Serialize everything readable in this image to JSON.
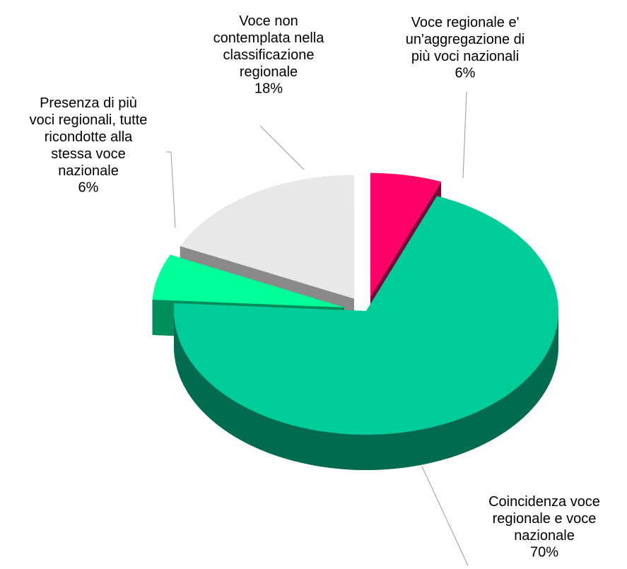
{
  "chart_data": {
    "type": "pie3d",
    "categories": [
      "Voce regionale e'\nun'aggregazione di\npiù voci nazionali",
      "Coincidenza voce\nregionale e voce\nnazionale",
      "Presenza di più\nvoci regionali, tutte\nricondotte alla\nstessa voce\nnazionale",
      "Voce non\ncontemplata nella\nclassificazione\nregionale"
    ],
    "values": [
      6,
      70,
      6,
      18
    ],
    "value_labels": [
      "6%",
      "70%",
      "6%",
      "18%"
    ],
    "colors": [
      "#ff0066",
      "#00cc99",
      "#00ff99",
      "#e8e8e8"
    ],
    "side_colors": [
      "#80003a",
      "#006b4f",
      "#008f5a",
      "#8a8a8a"
    ],
    "exploded": [
      true,
      false,
      true,
      true
    ]
  }
}
